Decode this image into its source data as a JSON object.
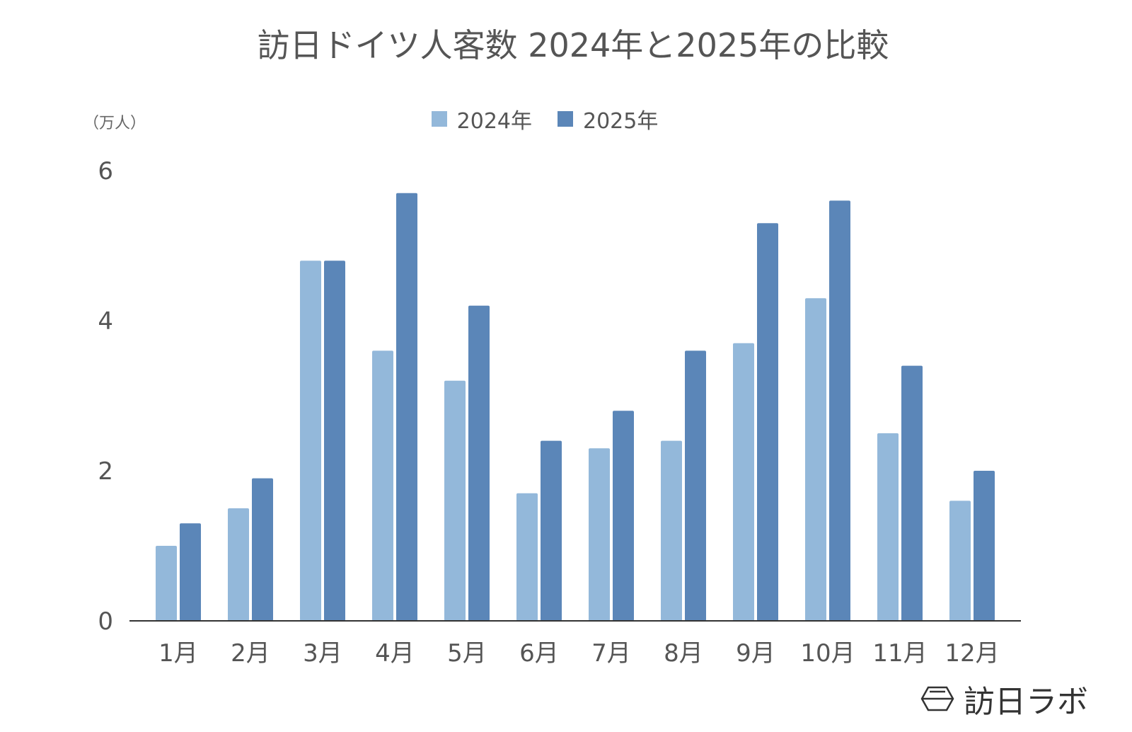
{
  "chart_data": {
    "type": "bar",
    "title": "訪日ドイツ人客数 2024年と2025年の比較",
    "ylabel": "（万人）",
    "xlabel": "",
    "categories": [
      "1月",
      "2月",
      "3月",
      "4月",
      "5月",
      "6月",
      "7月",
      "8月",
      "9月",
      "10月",
      "11月",
      "12月"
    ],
    "series": [
      {
        "name": "2024年",
        "color": "#93b8da",
        "values": [
          1.0,
          1.5,
          4.8,
          3.6,
          3.2,
          1.7,
          2.3,
          2.4,
          3.7,
          4.3,
          2.5,
          1.6
        ]
      },
      {
        "name": "2025年",
        "color": "#5b86b8",
        "values": [
          1.3,
          1.9,
          4.8,
          5.7,
          4.2,
          2.4,
          2.8,
          3.6,
          5.3,
          5.6,
          3.4,
          2.0
        ]
      }
    ],
    "ylim": [
      0,
      6
    ],
    "yticks": [
      0,
      2,
      4,
      6
    ],
    "grid": false,
    "legend": "top-center"
  },
  "logo": {
    "text": "訪日ラボ"
  }
}
